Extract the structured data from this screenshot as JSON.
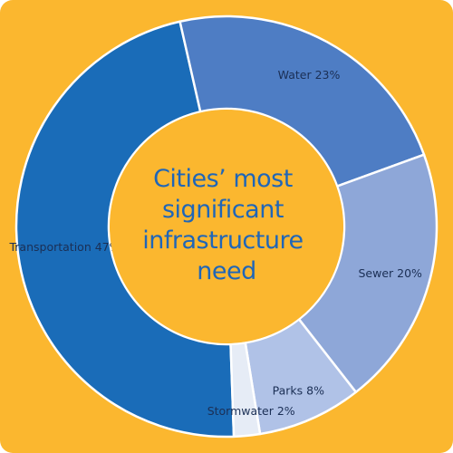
{
  "chart_data": {
    "type": "pie",
    "title": "Cities’ most significant infrastructure need",
    "title_lines": [
      "Cities’ most",
      "significant",
      "infrastructure",
      "need"
    ],
    "categories": [
      "Transportation",
      "Water",
      "Sewer",
      "Parks",
      "Stormwater"
    ],
    "values": [
      47,
      23,
      20,
      8,
      2
    ],
    "labels": [
      "Transportation 47%",
      "Water 23%",
      "Sewer 20%",
      "Parks 8%",
      "Stormwater 2%"
    ],
    "unit": "%",
    "colors": [
      "#1A6CB8",
      "#4E7DC4",
      "#8EA7D8",
      "#B0C2E7",
      "#E6ECF6"
    ],
    "label_colors": [
      "#ffffff",
      "#ffffff",
      "#1b2f55",
      "#1b2f55",
      "#1b2f55"
    ]
  },
  "style": {
    "background": "#FBB72F",
    "center_fill": "#FBB72F",
    "title_color": "#1f66b8"
  }
}
